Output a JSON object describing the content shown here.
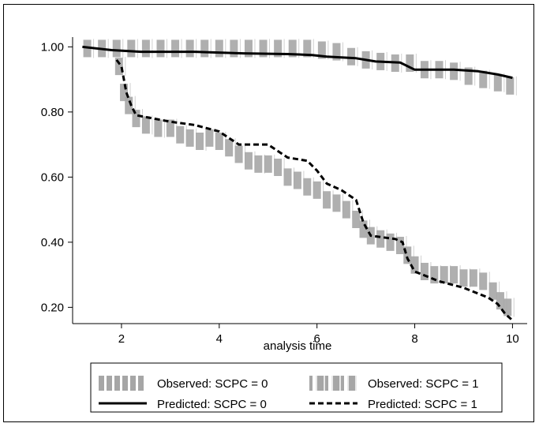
{
  "chart_data": {
    "type": "line",
    "xlabel": "analysis time",
    "ylabel": "",
    "xlim": [
      1.0,
      10.3
    ],
    "ylim": [
      0.15,
      1.03
    ],
    "xticks": [
      2,
      4,
      6,
      8,
      10
    ],
    "xtick_labels": [
      "2",
      "4",
      "6",
      "8",
      "10"
    ],
    "yticks": [
      0.2,
      0.4,
      0.6,
      0.8,
      1.0
    ],
    "ytick_labels": [
      "0.20",
      "0.40",
      "0.60",
      "0.80",
      "1.00"
    ],
    "grid": false,
    "legend_position": "bottom",
    "series": [
      {
        "name": "Observed: SCPC = 0",
        "style": "observed",
        "color": "#a6a6a6",
        "x": [
          1.3,
          1.6,
          1.9,
          2.2,
          2.5,
          2.8,
          3.1,
          3.4,
          3.7,
          4.0,
          4.3,
          4.6,
          4.9,
          5.2,
          5.5,
          5.8,
          6.1,
          6.4,
          6.7,
          7.0,
          7.3,
          7.6,
          7.9,
          8.2,
          8.5,
          8.8,
          9.1,
          9.4,
          9.7,
          9.95
        ],
        "y": [
          0.995,
          0.995,
          0.995,
          0.995,
          0.995,
          0.995,
          0.995,
          0.995,
          0.995,
          0.995,
          0.995,
          0.995,
          0.995,
          0.995,
          0.995,
          0.995,
          0.99,
          0.985,
          0.97,
          0.96,
          0.955,
          0.95,
          0.95,
          0.93,
          0.93,
          0.925,
          0.91,
          0.9,
          0.89,
          0.88
        ]
      },
      {
        "name": "Observed: SCPC = 1",
        "style": "observed",
        "color": "#a6a6a6",
        "x": [
          1.95,
          2.05,
          2.15,
          2.3,
          2.5,
          2.75,
          3.0,
          3.2,
          3.4,
          3.6,
          3.8,
          4.0,
          4.2,
          4.4,
          4.6,
          4.8,
          5.0,
          5.2,
          5.4,
          5.6,
          5.8,
          6.0,
          6.2,
          6.4,
          6.6,
          6.8,
          6.95,
          7.1,
          7.3,
          7.5,
          7.7,
          7.85,
          8.0,
          8.2,
          8.4,
          8.6,
          8.8,
          9.0,
          9.2,
          9.4,
          9.6,
          9.75,
          9.9
        ],
        "y": [
          0.94,
          0.86,
          0.82,
          0.78,
          0.76,
          0.75,
          0.75,
          0.73,
          0.72,
          0.71,
          0.72,
          0.71,
          0.69,
          0.67,
          0.65,
          0.64,
          0.64,
          0.63,
          0.6,
          0.59,
          0.57,
          0.56,
          0.53,
          0.52,
          0.5,
          0.47,
          0.44,
          0.42,
          0.41,
          0.4,
          0.39,
          0.36,
          0.33,
          0.31,
          0.3,
          0.3,
          0.3,
          0.29,
          0.29,
          0.28,
          0.25,
          0.22,
          0.2
        ]
      },
      {
        "name": "Predicted: SCPC = 0",
        "style": "solid",
        "color": "#000000",
        "x": [
          1.2,
          1.8,
          2.4,
          3.5,
          4.5,
          5.4,
          5.9,
          6.2,
          6.8,
          7.2,
          7.7,
          8.0,
          8.8,
          9.3,
          9.7,
          10.0
        ],
        "y": [
          1.0,
          0.99,
          0.985,
          0.985,
          0.98,
          0.978,
          0.975,
          0.97,
          0.965,
          0.955,
          0.952,
          0.93,
          0.93,
          0.925,
          0.915,
          0.905
        ]
      },
      {
        "name": "Predicted: SCPC = 1",
        "style": "dashed",
        "color": "#000000",
        "x": [
          1.9,
          2.0,
          2.05,
          2.1,
          2.2,
          2.3,
          3.0,
          3.5,
          4.0,
          4.2,
          4.4,
          5.0,
          5.2,
          5.4,
          5.8,
          6.0,
          6.2,
          6.5,
          6.8,
          6.95,
          7.1,
          7.6,
          7.75,
          7.85,
          8.0,
          8.5,
          9.0,
          9.5,
          9.7,
          9.85,
          10.0
        ],
        "y": [
          0.96,
          0.94,
          0.9,
          0.86,
          0.82,
          0.79,
          0.77,
          0.76,
          0.74,
          0.72,
          0.7,
          0.7,
          0.68,
          0.66,
          0.65,
          0.62,
          0.58,
          0.56,
          0.53,
          0.46,
          0.42,
          0.41,
          0.4,
          0.35,
          0.31,
          0.28,
          0.26,
          0.23,
          0.21,
          0.18,
          0.16
        ]
      }
    ]
  }
}
